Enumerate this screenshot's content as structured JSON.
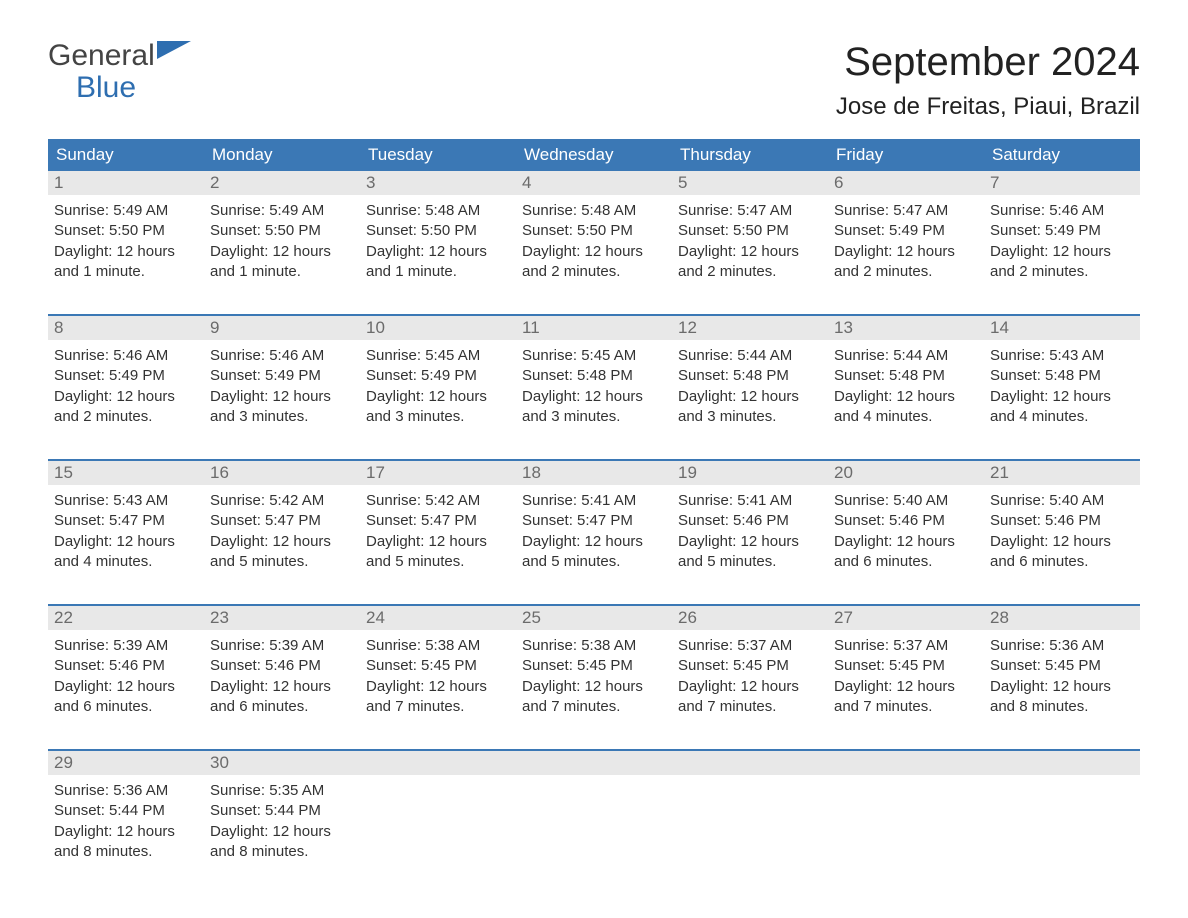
{
  "logo": {
    "line1": "General",
    "line2": "Blue",
    "flag_color": "#2e6eb0",
    "text_color_general": "#444444",
    "text_color_blue": "#2e6eb0"
  },
  "header": {
    "title": "September 2024",
    "subtitle": "Jose de Freitas, Piaui, Brazil"
  },
  "colors": {
    "header_bg": "#3b78b5",
    "header_text": "#ffffff",
    "daynum_bg": "#e8e8e8",
    "daynum_text": "#6b6b6b",
    "week_border": "#3b78b5",
    "body_text": "#333333",
    "page_bg": "#ffffff"
  },
  "fontsizes": {
    "title": 40,
    "subtitle": 24,
    "dow": 17,
    "daynum": 17,
    "details": 15,
    "logo": 30
  },
  "days_of_week": [
    "Sunday",
    "Monday",
    "Tuesday",
    "Wednesday",
    "Thursday",
    "Friday",
    "Saturday"
  ],
  "weeks": [
    [
      {
        "day": "1",
        "sunrise": "Sunrise: 5:49 AM",
        "sunset": "Sunset: 5:50 PM",
        "daylight": "Daylight: 12 hours and 1 minute."
      },
      {
        "day": "2",
        "sunrise": "Sunrise: 5:49 AM",
        "sunset": "Sunset: 5:50 PM",
        "daylight": "Daylight: 12 hours and 1 minute."
      },
      {
        "day": "3",
        "sunrise": "Sunrise: 5:48 AM",
        "sunset": "Sunset: 5:50 PM",
        "daylight": "Daylight: 12 hours and 1 minute."
      },
      {
        "day": "4",
        "sunrise": "Sunrise: 5:48 AM",
        "sunset": "Sunset: 5:50 PM",
        "daylight": "Daylight: 12 hours and 2 minutes."
      },
      {
        "day": "5",
        "sunrise": "Sunrise: 5:47 AM",
        "sunset": "Sunset: 5:50 PM",
        "daylight": "Daylight: 12 hours and 2 minutes."
      },
      {
        "day": "6",
        "sunrise": "Sunrise: 5:47 AM",
        "sunset": "Sunset: 5:49 PM",
        "daylight": "Daylight: 12 hours and 2 minutes."
      },
      {
        "day": "7",
        "sunrise": "Sunrise: 5:46 AM",
        "sunset": "Sunset: 5:49 PM",
        "daylight": "Daylight: 12 hours and 2 minutes."
      }
    ],
    [
      {
        "day": "8",
        "sunrise": "Sunrise: 5:46 AM",
        "sunset": "Sunset: 5:49 PM",
        "daylight": "Daylight: 12 hours and 2 minutes."
      },
      {
        "day": "9",
        "sunrise": "Sunrise: 5:46 AM",
        "sunset": "Sunset: 5:49 PM",
        "daylight": "Daylight: 12 hours and 3 minutes."
      },
      {
        "day": "10",
        "sunrise": "Sunrise: 5:45 AM",
        "sunset": "Sunset: 5:49 PM",
        "daylight": "Daylight: 12 hours and 3 minutes."
      },
      {
        "day": "11",
        "sunrise": "Sunrise: 5:45 AM",
        "sunset": "Sunset: 5:48 PM",
        "daylight": "Daylight: 12 hours and 3 minutes."
      },
      {
        "day": "12",
        "sunrise": "Sunrise: 5:44 AM",
        "sunset": "Sunset: 5:48 PM",
        "daylight": "Daylight: 12 hours and 3 minutes."
      },
      {
        "day": "13",
        "sunrise": "Sunrise: 5:44 AM",
        "sunset": "Sunset: 5:48 PM",
        "daylight": "Daylight: 12 hours and 4 minutes."
      },
      {
        "day": "14",
        "sunrise": "Sunrise: 5:43 AM",
        "sunset": "Sunset: 5:48 PM",
        "daylight": "Daylight: 12 hours and 4 minutes."
      }
    ],
    [
      {
        "day": "15",
        "sunrise": "Sunrise: 5:43 AM",
        "sunset": "Sunset: 5:47 PM",
        "daylight": "Daylight: 12 hours and 4 minutes."
      },
      {
        "day": "16",
        "sunrise": "Sunrise: 5:42 AM",
        "sunset": "Sunset: 5:47 PM",
        "daylight": "Daylight: 12 hours and 5 minutes."
      },
      {
        "day": "17",
        "sunrise": "Sunrise: 5:42 AM",
        "sunset": "Sunset: 5:47 PM",
        "daylight": "Daylight: 12 hours and 5 minutes."
      },
      {
        "day": "18",
        "sunrise": "Sunrise: 5:41 AM",
        "sunset": "Sunset: 5:47 PM",
        "daylight": "Daylight: 12 hours and 5 minutes."
      },
      {
        "day": "19",
        "sunrise": "Sunrise: 5:41 AM",
        "sunset": "Sunset: 5:46 PM",
        "daylight": "Daylight: 12 hours and 5 minutes."
      },
      {
        "day": "20",
        "sunrise": "Sunrise: 5:40 AM",
        "sunset": "Sunset: 5:46 PM",
        "daylight": "Daylight: 12 hours and 6 minutes."
      },
      {
        "day": "21",
        "sunrise": "Sunrise: 5:40 AM",
        "sunset": "Sunset: 5:46 PM",
        "daylight": "Daylight: 12 hours and 6 minutes."
      }
    ],
    [
      {
        "day": "22",
        "sunrise": "Sunrise: 5:39 AM",
        "sunset": "Sunset: 5:46 PM",
        "daylight": "Daylight: 12 hours and 6 minutes."
      },
      {
        "day": "23",
        "sunrise": "Sunrise: 5:39 AM",
        "sunset": "Sunset: 5:46 PM",
        "daylight": "Daylight: 12 hours and 6 minutes."
      },
      {
        "day": "24",
        "sunrise": "Sunrise: 5:38 AM",
        "sunset": "Sunset: 5:45 PM",
        "daylight": "Daylight: 12 hours and 7 minutes."
      },
      {
        "day": "25",
        "sunrise": "Sunrise: 5:38 AM",
        "sunset": "Sunset: 5:45 PM",
        "daylight": "Daylight: 12 hours and 7 minutes."
      },
      {
        "day": "26",
        "sunrise": "Sunrise: 5:37 AM",
        "sunset": "Sunset: 5:45 PM",
        "daylight": "Daylight: 12 hours and 7 minutes."
      },
      {
        "day": "27",
        "sunrise": "Sunrise: 5:37 AM",
        "sunset": "Sunset: 5:45 PM",
        "daylight": "Daylight: 12 hours and 7 minutes."
      },
      {
        "day": "28",
        "sunrise": "Sunrise: 5:36 AM",
        "sunset": "Sunset: 5:45 PM",
        "daylight": "Daylight: 12 hours and 8 minutes."
      }
    ],
    [
      {
        "day": "29",
        "sunrise": "Sunrise: 5:36 AM",
        "sunset": "Sunset: 5:44 PM",
        "daylight": "Daylight: 12 hours and 8 minutes."
      },
      {
        "day": "30",
        "sunrise": "Sunrise: 5:35 AM",
        "sunset": "Sunset: 5:44 PM",
        "daylight": "Daylight: 12 hours and 8 minutes."
      },
      null,
      null,
      null,
      null,
      null
    ]
  ]
}
